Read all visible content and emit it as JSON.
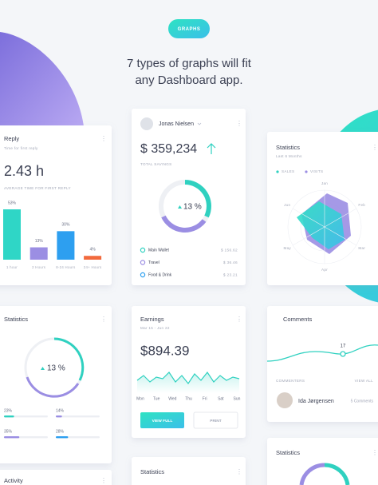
{
  "header": {
    "button": "GRAPHS",
    "headline": [
      "7 types of graphs will fit",
      "any Dashboard app."
    ]
  },
  "reply_card": {
    "title": "Reply",
    "subtitle": "Time for first reply",
    "value": "2.43 h",
    "caption": "AVERAGE TIME FOR FIRST REPLY",
    "bars": {
      "categories": [
        "1 hour",
        "2 Hours",
        "8-24 Hours",
        "24+ Hours"
      ],
      "values": [
        53,
        13,
        30,
        4
      ],
      "value_labels": [
        "53%",
        "13%",
        "30%",
        "4%"
      ],
      "colors": [
        "#2fd6c6",
        "#9b8ee3",
        "#2d9ff0",
        "#f26a3d"
      ]
    }
  },
  "savings_card": {
    "user": "Jonas Nielsen",
    "amount": "$ 359,234",
    "caption": "TOTAL SAVINGS",
    "donut_label": "13 %",
    "items": [
      {
        "name": "Main Wallet",
        "amount": "$ 156.62",
        "color": "#2fd1c0"
      },
      {
        "name": "Travel",
        "amount": "$ 36.46",
        "color": "#9b8ee3"
      },
      {
        "name": "Food & Drink",
        "amount": "$ 23.21",
        "color": "#2d9ff0"
      }
    ]
  },
  "radar_card": {
    "title": "Statistics",
    "subtitle": "Last 6 Months",
    "legend": [
      {
        "name": "SALES",
        "color": "#2fd1c0"
      },
      {
        "name": "VISITS",
        "color": "#9b8ee3"
      }
    ],
    "axes": [
      "Jan",
      "Feb",
      "Mar",
      "Apr",
      "May",
      "Jun"
    ]
  },
  "progress_card": {
    "title": "Statistics",
    "donut_label": "13 %",
    "bars": {
      "values": [
        23,
        14,
        35,
        28
      ],
      "value_labels": [
        "23%",
        "14%",
        "35%",
        "28%"
      ],
      "colors": [
        "#2fd1c0",
        "#9b8ee3",
        "#9b8ee3",
        "#2d9ff0"
      ]
    }
  },
  "earnings_card": {
    "title": "Earnings",
    "period": "Mar 15 - Jun 22",
    "amount": "$894.39",
    "days": [
      "Mon",
      "Tue",
      "Wed",
      "Thu",
      "Fri",
      "Sat",
      "Sun"
    ],
    "buttons": [
      "VIEW FULL",
      "PRINT"
    ]
  },
  "comments_card": {
    "title": "Comments",
    "peak_label": "17",
    "commenters": "COMMENTERS",
    "view_all": "VIEW ALL",
    "user": "Ida Jørgensen",
    "count": "5 Comments"
  },
  "bottom_cards": [
    "Activity",
    "Statistics",
    "Statistics"
  ]
}
